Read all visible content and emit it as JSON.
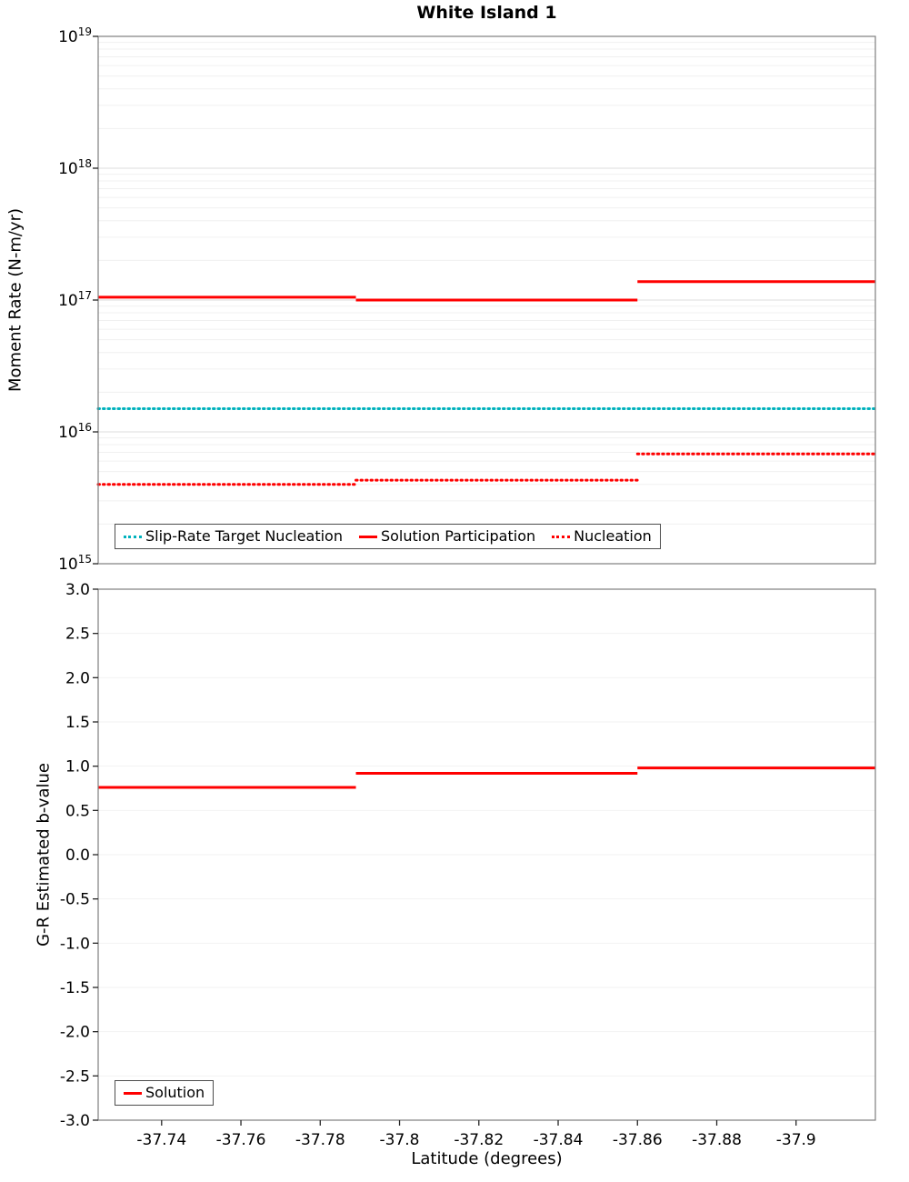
{
  "title": "White Island 1",
  "axes": {
    "moment_rate_ylabel": "Moment Rate (N-m/yr)",
    "b_value_ylabel": "G-R Estimated b-value",
    "xlabel": "Latitude (degrees)"
  },
  "chart_data": [
    {
      "type": "line",
      "title": "White Island 1",
      "ylabel": "Moment Rate (N-m/yr)",
      "yscale": "log",
      "ylim": [
        1000000000000000.0,
        1e+19
      ],
      "xlim": [
        -37.724,
        -37.92
      ],
      "grid": true,
      "legend_position": "inside-bottom-left",
      "x_ticks": [
        -37.74,
        -37.76,
        -37.78,
        -37.8,
        -37.82,
        -37.84,
        -37.86,
        -37.88,
        -37.9
      ],
      "x_tick_labels": [
        "-37.74",
        "-37.76",
        "-37.78",
        "-37.8",
        "-37.82",
        "-37.84",
        "-37.86",
        "-37.88",
        "-37.9"
      ],
      "y_ticks": [
        1000000000000000.0,
        1e+16,
        1e+17,
        1e+18,
        1e+19
      ],
      "series": [
        {
          "name": "Slip-Rate Target Nucleation",
          "color": "#00b2bd",
          "style": "dotted",
          "segments": [
            {
              "x": [
                -37.724,
                -37.92
              ],
              "y": [
                1.5e+16,
                1.5e+16
              ]
            }
          ]
        },
        {
          "name": "Solution Participation",
          "color": "#ff0000",
          "style": "solid",
          "segments": [
            {
              "x": [
                -37.724,
                -37.789
              ],
              "y": [
                1.05e+17,
                1.05e+17
              ]
            },
            {
              "x": [
                -37.789,
                -37.86
              ],
              "y": [
                1e+17,
                1e+17
              ]
            },
            {
              "x": [
                -37.86,
                -37.92
              ],
              "y": [
                1.38e+17,
                1.38e+17
              ]
            }
          ]
        },
        {
          "name": "Nucleation",
          "color": "#ff0000",
          "style": "dotted",
          "segments": [
            {
              "x": [
                -37.724,
                -37.789
              ],
              "y": [
                4000000000000000.0,
                4000000000000000.0
              ]
            },
            {
              "x": [
                -37.789,
                -37.86
              ],
              "y": [
                4300000000000000.0,
                4300000000000000.0
              ]
            },
            {
              "x": [
                -37.86,
                -37.92
              ],
              "y": [
                6800000000000000.0,
                6800000000000000.0
              ]
            }
          ]
        }
      ]
    },
    {
      "type": "line",
      "ylabel": "G-R Estimated b-value",
      "xlabel": "Latitude (degrees)",
      "yscale": "linear",
      "ylim": [
        -3.0,
        3.0
      ],
      "xlim": [
        -37.724,
        -37.92
      ],
      "grid": true,
      "legend_position": "inside-bottom-left",
      "x_ticks": [
        -37.74,
        -37.76,
        -37.78,
        -37.8,
        -37.82,
        -37.84,
        -37.86,
        -37.88,
        -37.9
      ],
      "x_tick_labels": [
        "-37.74",
        "-37.76",
        "-37.78",
        "-37.8",
        "-37.82",
        "-37.84",
        "-37.86",
        "-37.88",
        "-37.9"
      ],
      "y_ticks": [
        3.0,
        2.5,
        2.0,
        1.5,
        1.0,
        0.5,
        0.0,
        -0.5,
        -1.0,
        -1.5,
        -2.0,
        -2.5,
        -3.0
      ],
      "y_tick_labels": [
        "3.0",
        "2.5",
        "2.0",
        "1.5",
        "1.0",
        "0.5",
        "0.0",
        "-0.5",
        "-1.0",
        "-1.5",
        "-2.0",
        "-2.5",
        "-3.0"
      ],
      "series": [
        {
          "name": "Solution",
          "color": "#ff0000",
          "style": "solid",
          "segments": [
            {
              "x": [
                -37.724,
                -37.789
              ],
              "y": [
                0.76,
                0.76
              ]
            },
            {
              "x": [
                -37.789,
                -37.86
              ],
              "y": [
                0.92,
                0.92
              ]
            },
            {
              "x": [
                -37.86,
                -37.92
              ],
              "y": [
                0.98,
                0.98
              ]
            }
          ]
        }
      ]
    }
  ]
}
